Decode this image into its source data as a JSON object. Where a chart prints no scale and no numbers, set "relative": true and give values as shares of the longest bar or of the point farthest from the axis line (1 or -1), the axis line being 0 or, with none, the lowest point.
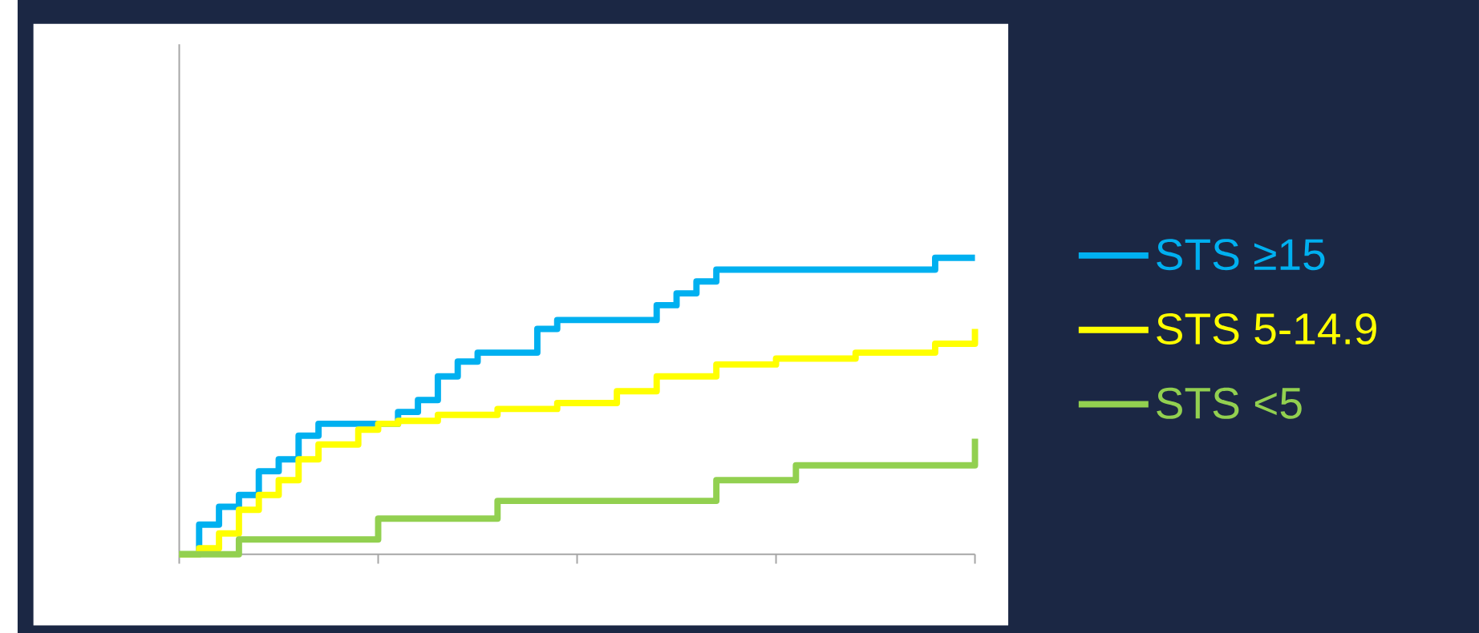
{
  "chart_data": {
    "type": "step",
    "relative": true,
    "categories": [
      null,
      null,
      null,
      null,
      null,
      null,
      null,
      null,
      null,
      null,
      null,
      null,
      null,
      null,
      null,
      null,
      null,
      null,
      null,
      null,
      null,
      null,
      null,
      null,
      null,
      null,
      null,
      null,
      null,
      null,
      null,
      null,
      null,
      null,
      null,
      null,
      null,
      null,
      null,
      null,
      null
    ],
    "grid": false,
    "legend": "right",
    "marker": "none",
    "line_style": "solid",
    "series": [
      {
        "name": "STS ≥15",
        "color": "#00b0f0",
        "values": [
          0,
          0.1,
          0.16,
          0.2,
          0.28,
          0.32,
          0.4,
          0.44,
          0.44,
          0.44,
          0.44,
          0.48,
          0.52,
          0.6,
          0.65,
          0.68,
          0.68,
          0.68,
          0.76,
          0.79,
          0.79,
          0.79,
          0.79,
          0.79,
          0.84,
          0.88,
          0.92,
          0.96,
          0.96,
          0.96,
          0.96,
          0.96,
          0.96,
          0.96,
          0.96,
          0.96,
          0.96,
          0.96,
          1.0,
          1.0,
          1.0
        ]
      },
      {
        "name": "STS 5-14.9",
        "color": "#ffff00",
        "values": [
          0,
          0.02,
          0.07,
          0.15,
          0.2,
          0.25,
          0.32,
          0.37,
          0.37,
          0.42,
          0.44,
          0.45,
          0.45,
          0.47,
          0.47,
          0.47,
          0.49,
          0.49,
          0.49,
          0.51,
          0.51,
          0.51,
          0.55,
          0.55,
          0.6,
          0.6,
          0.6,
          0.64,
          0.64,
          0.64,
          0.66,
          0.66,
          0.66,
          0.66,
          0.68,
          0.68,
          0.68,
          0.68,
          0.71,
          0.71,
          0.76
        ]
      },
      {
        "name": "STS <5",
        "color": "#92d050",
        "values": [
          0,
          0,
          0,
          0.05,
          0.05,
          0.05,
          0.05,
          0.05,
          0.05,
          0.05,
          0.12,
          0.12,
          0.12,
          0.12,
          0.12,
          0.12,
          0.18,
          0.18,
          0.18,
          0.18,
          0.18,
          0.18,
          0.18,
          0.18,
          0.18,
          0.18,
          0.18,
          0.25,
          0.25,
          0.25,
          0.25,
          0.3,
          0.3,
          0.3,
          0.3,
          0.3,
          0.3,
          0.3,
          0.3,
          0.3,
          0.39
        ]
      }
    ]
  }
}
